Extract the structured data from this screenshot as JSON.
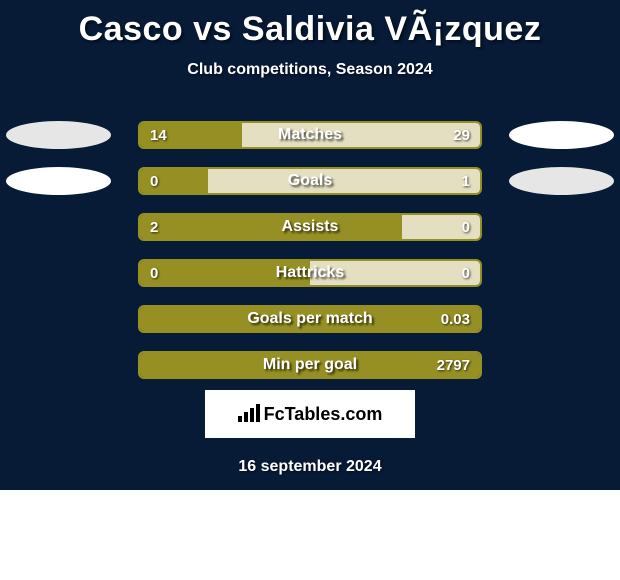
{
  "background_color": "#071a36",
  "title": "Casco vs Saldivia VÃ¡zquez",
  "subtitle": "Club competitions, Season 2024",
  "date": "16 september 2024",
  "logo": {
    "text": "FcTables.com"
  },
  "palette": {
    "player1_main": "#969024",
    "player1_light": "#e4dfc0",
    "player2_main": "#e6e6e6",
    "player2_light": "#ffffff"
  },
  "stats": [
    {
      "label": "Matches",
      "left_value": "14",
      "right_value": "29",
      "left_pct": 30,
      "right_pct": 70,
      "border_color": "#969024",
      "left_fill": "#969024",
      "right_fill": "#e4dfc0",
      "ellipse_left": "#e6e6e6",
      "ellipse_right": "#ffffff"
    },
    {
      "label": "Goals",
      "left_value": "0",
      "right_value": "1",
      "left_pct": 20,
      "right_pct": 80,
      "border_color": "#969024",
      "left_fill": "#969024",
      "right_fill": "#e4dfc0",
      "ellipse_left": "#ffffff",
      "ellipse_right": "#e6e6e6"
    },
    {
      "label": "Assists",
      "left_value": "2",
      "right_value": "0",
      "left_pct": 77,
      "right_pct": 23,
      "border_color": "#969024",
      "left_fill": "#969024",
      "right_fill": "#e4dfc0",
      "ellipse_left": null,
      "ellipse_right": null
    },
    {
      "label": "Hattricks",
      "left_value": "0",
      "right_value": "0",
      "left_pct": 50,
      "right_pct": 50,
      "border_color": "#969024",
      "left_fill": "#969024",
      "right_fill": "#e4dfc0",
      "ellipse_left": null,
      "ellipse_right": null
    },
    {
      "label": "Goals per match",
      "left_value": "",
      "right_value": "0.03",
      "left_pct": 100,
      "right_pct": 0,
      "border_color": "#969024",
      "left_fill": "#969024",
      "right_fill": "#e4dfc0",
      "ellipse_left": null,
      "ellipse_right": null
    },
    {
      "label": "Min per goal",
      "left_value": "",
      "right_value": "2797",
      "left_pct": 100,
      "right_pct": 0,
      "border_color": "#969024",
      "left_fill": "#969024",
      "right_fill": "#e4dfc0",
      "ellipse_left": null,
      "ellipse_right": null
    }
  ]
}
